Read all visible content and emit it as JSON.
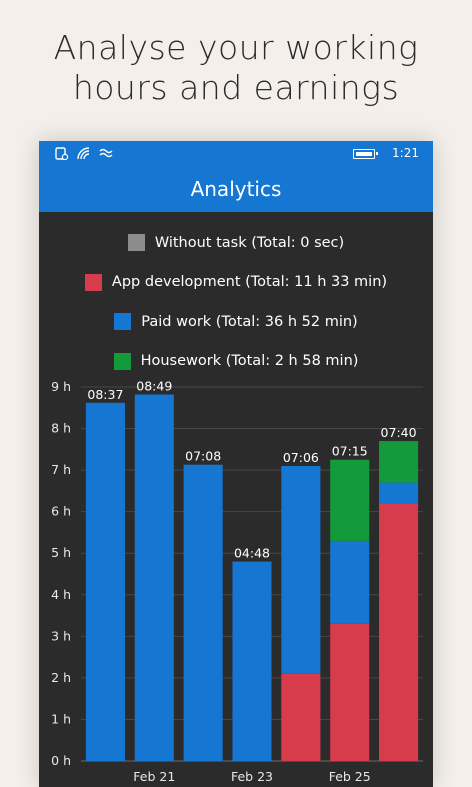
{
  "headline": {
    "line1": "Analyse your working",
    "line2": "hours and earnings"
  },
  "status_bar": {
    "icons": [
      "phone-icon",
      "wifi-icon",
      "signal-icon"
    ],
    "battery_icon": "battery-icon",
    "time": "1:21"
  },
  "app": {
    "title": "Analytics"
  },
  "legend": [
    {
      "label": "Without task (Total: 0 sec)",
      "color": "#8c8c8c"
    },
    {
      "label": "App development (Total: 11 h 33 min)",
      "color": "#d63c4b"
    },
    {
      "label": "Paid work (Total: 36 h 52 min)",
      "color": "#1577d1"
    },
    {
      "label": "Housework (Total: 2 h 58 min)",
      "color": "#139a3b"
    }
  ],
  "chart_data": {
    "type": "bar",
    "stacked": true,
    "grid": true,
    "ylim": [
      0,
      9
    ],
    "y_ticks": [
      "0 h",
      "1 h",
      "2 h",
      "3 h",
      "4 h",
      "5 h",
      "6 h",
      "7 h",
      "8 h",
      "9 h"
    ],
    "x_tick_labels": [
      "",
      "Feb 21",
      "",
      "Feb 23",
      "",
      "Feb 25",
      ""
    ],
    "totals": [
      "08:37",
      "08:49",
      "07:08",
      "04:48",
      "07:06",
      "07:15",
      "07:40"
    ],
    "series": [
      {
        "name": "App development",
        "color": "#d63c4b",
        "values": [
          0,
          0,
          0,
          0,
          2.1,
          3.3,
          6.2
        ]
      },
      {
        "name": "Paid work",
        "color": "#1577d1",
        "values": [
          8.62,
          8.82,
          7.13,
          4.8,
          5.0,
          2.0,
          0.5
        ]
      },
      {
        "name": "Housework",
        "color": "#139a3b",
        "values": [
          0,
          0,
          0,
          0,
          0,
          1.95,
          1.0
        ]
      }
    ]
  }
}
